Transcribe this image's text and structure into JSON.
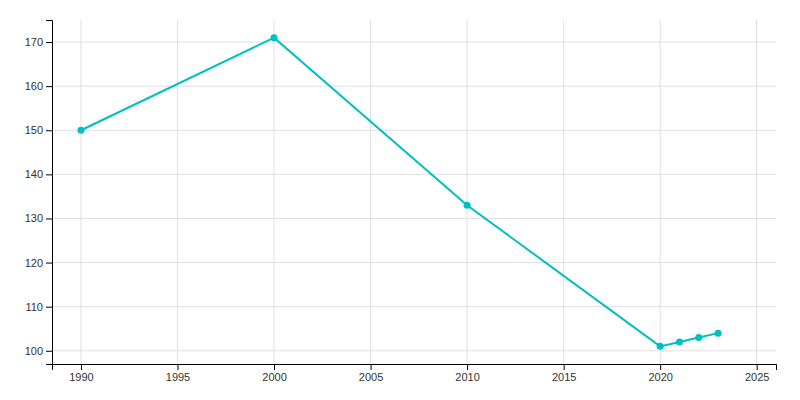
{
  "chart_data": {
    "type": "line",
    "x": [
      1990,
      2000,
      2010,
      2020,
      2021,
      2022,
      2023
    ],
    "values": [
      150,
      171,
      133,
      101,
      102,
      103,
      104
    ],
    "color": "#00BFBF",
    "marker": "circle",
    "xlim": [
      1988.5,
      2026
    ],
    "ylim": [
      97,
      175
    ],
    "xticks": [
      1990,
      1995,
      2000,
      2005,
      2010,
      2015,
      2020,
      2025
    ],
    "yticks": [
      100,
      110,
      120,
      130,
      140,
      150,
      160,
      170
    ],
    "grid": true
  }
}
